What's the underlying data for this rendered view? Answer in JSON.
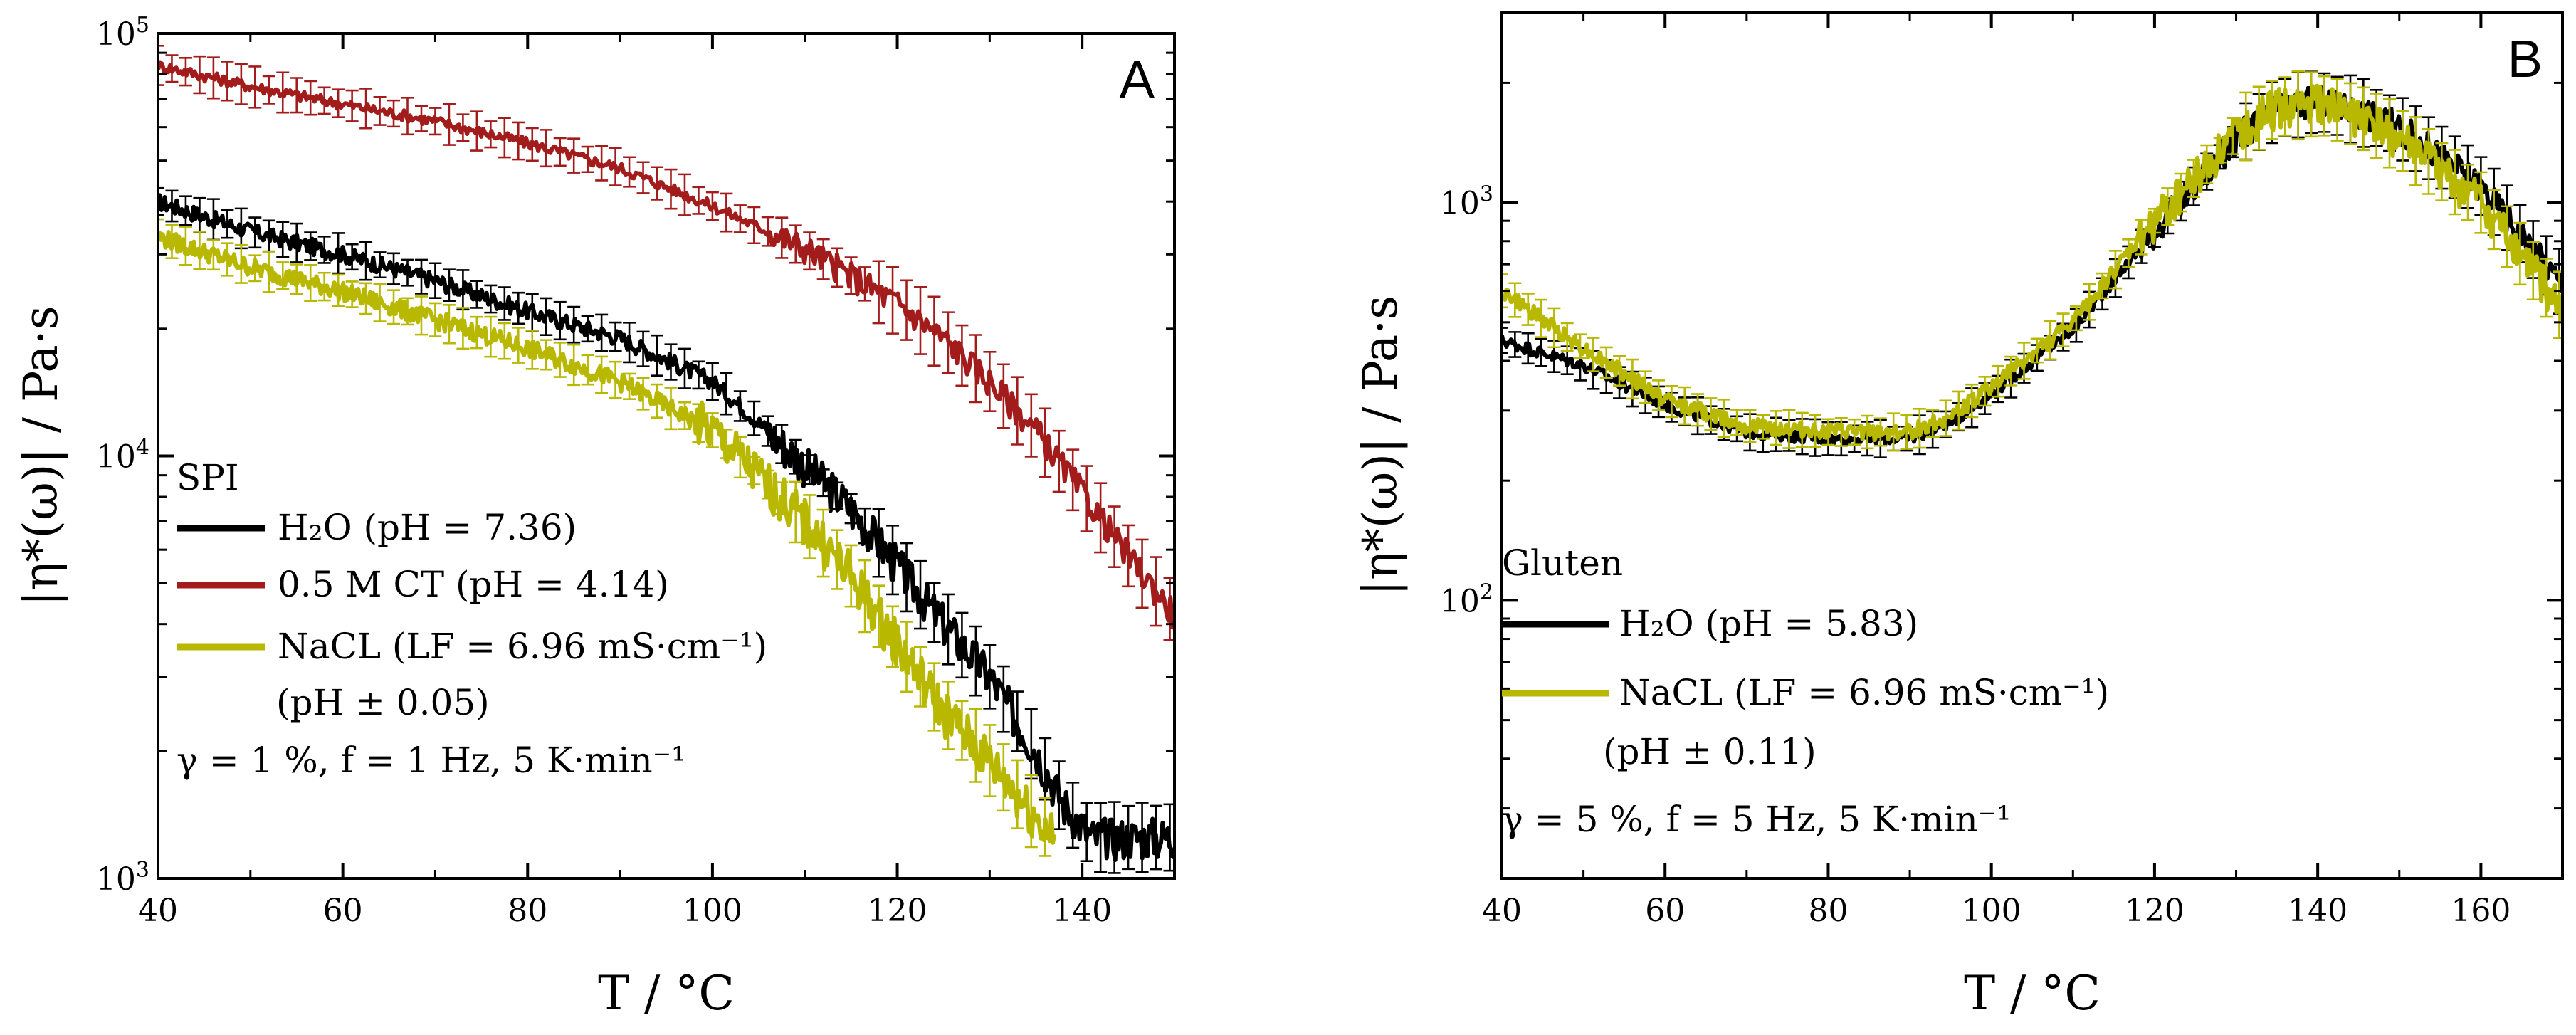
{
  "figure": {
    "colors": {
      "black": "#000000",
      "red": "#A31C1C",
      "yellow": "#B8B800"
    }
  },
  "chart_data": [
    {
      "type": "line",
      "panel_label": "A",
      "xlabel": "T / °C",
      "ylabel": "|η*(ω)| / Pa·s",
      "xlim": [
        40,
        150
      ],
      "ylim": [
        1000,
        100000
      ],
      "yscale": "log",
      "x_ticks": [
        40,
        60,
        80,
        100,
        120,
        140
      ],
      "x_tick_labels": [
        "40",
        "60",
        "80",
        "100",
        "120",
        "140"
      ],
      "y_ticks": [
        1000,
        10000,
        100000
      ],
      "y_tick_labels": [
        {
          "base": "10",
          "exp": "3"
        },
        {
          "base": "10",
          "exp": "4"
        },
        {
          "base": "10",
          "exp": "5"
        }
      ],
      "legend_title": "SPI",
      "legend_note": "γ  = 1 %, f = 1 Hz, 5 K·min⁻¹",
      "series": [
        {
          "name": "H₂O (pH = 7.36)",
          "color": "#000000",
          "x": [
            40,
            50,
            60,
            70,
            80,
            90,
            100,
            105,
            110,
            115,
            120,
            125,
            130,
            135,
            138,
            141,
            150
          ],
          "y": [
            40000,
            34000,
            30000,
            26000,
            22000,
            19000,
            15000,
            12000,
            9500,
            7500,
            5500,
            4000,
            3000,
            2000,
            1500,
            1250,
            1250
          ]
        },
        {
          "name": "0.5 M CT (pH = 4.14)",
          "color": "#A31C1C",
          "x": [
            40,
            50,
            60,
            70,
            80,
            90,
            100,
            110,
            120,
            125,
            130,
            135,
            140,
            145,
            150
          ],
          "y": [
            84000,
            75000,
            68000,
            62000,
            55000,
            48000,
            39000,
            31000,
            23000,
            19000,
            15000,
            11500,
            8200,
            5800,
            4200
          ]
        },
        {
          "name": "NaCL (LF = 6.96 mS·cm⁻¹)",
          "sub": "(pH ± 0.05)",
          "color": "#B8B800",
          "x": [
            40,
            50,
            60,
            70,
            80,
            90,
            100,
            105,
            110,
            115,
            120,
            125,
            130,
            135,
            137
          ],
          "y": [
            33000,
            28000,
            24500,
            21000,
            18000,
            15000,
            11500,
            9000,
            7000,
            5200,
            3600,
            2500,
            1900,
            1400,
            1250
          ]
        }
      ]
    },
    {
      "type": "line",
      "panel_label": "B",
      "xlabel": "T / °C",
      "ylabel": "|η*(ω)| / Pa·s",
      "xlim": [
        40,
        170
      ],
      "ylim": [
        20,
        3000
      ],
      "yscale": "log",
      "x_ticks": [
        40,
        60,
        80,
        100,
        120,
        140,
        160
      ],
      "x_tick_labels": [
        "40",
        "60",
        "80",
        "100",
        "120",
        "140",
        "160"
      ],
      "y_ticks": [
        100,
        1000
      ],
      "y_tick_labels": [
        {
          "base": "10",
          "exp": "2"
        },
        {
          "base": "10",
          "exp": "3"
        }
      ],
      "legend_title": "Gluten",
      "legend_note": "γ = 5 %, f = 5 Hz, 5 K·min⁻¹",
      "series": [
        {
          "name": "H₂O (pH = 5.83)",
          "color": "#000000",
          "x": [
            40,
            50,
            60,
            70,
            80,
            90,
            95,
            100,
            110,
            120,
            130,
            135,
            140,
            145,
            150,
            160,
            170
          ],
          "y": [
            450,
            390,
            310,
            265,
            255,
            255,
            280,
            330,
            480,
            850,
            1450,
            1720,
            1800,
            1700,
            1550,
            1100,
            620
          ]
        },
        {
          "name": "NaCL (LF = 6.96 mS·cm⁻¹)",
          "sub": "(pH ± 0.11)",
          "color": "#B8B800",
          "x": [
            40,
            50,
            60,
            70,
            80,
            90,
            95,
            100,
            110,
            120,
            130,
            135,
            140,
            145,
            150,
            160,
            170
          ],
          "y": [
            600,
            430,
            320,
            275,
            265,
            265,
            290,
            345,
            500,
            900,
            1500,
            1740,
            1770,
            1650,
            1450,
            1000,
            540
          ]
        }
      ]
    }
  ]
}
